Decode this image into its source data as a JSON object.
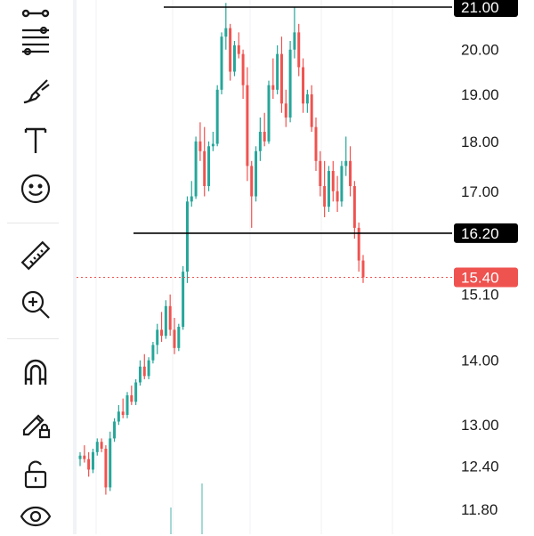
{
  "toolbar": {
    "tools": [
      {
        "name": "line-tool-icon"
      },
      {
        "name": "fib-tool-icon"
      },
      {
        "name": "brush-icon"
      },
      {
        "name": "text-icon"
      },
      {
        "name": "emoji-icon"
      },
      {
        "name": "ruler-icon"
      },
      {
        "name": "zoom-in-icon"
      },
      {
        "name": "magnet-icon"
      },
      {
        "name": "lock-drawing-icon"
      },
      {
        "name": "unlock-icon"
      },
      {
        "name": "eye-icon"
      }
    ]
  },
  "colors": {
    "up": "#26a69a",
    "down": "#ef5350",
    "line": "#000000",
    "price_tag": "#ef5350"
  },
  "chart_data": {
    "type": "candlestick",
    "y_ticks": [
      "21.00",
      "20.00",
      "19.00",
      "18.00",
      "17.00",
      "16.20",
      "15.10",
      "14.00",
      "13.00",
      "12.40",
      "11.80"
    ],
    "y_tick_values": [
      21.0,
      20.0,
      19.0,
      18.0,
      17.0,
      16.2,
      15.1,
      14.0,
      13.0,
      12.4,
      11.8
    ],
    "horizontal_lines": [
      {
        "value": 21.0,
        "label": "21.00"
      },
      {
        "value": 16.2,
        "label": "16.20"
      }
    ],
    "current_price": {
      "value": 15.4,
      "label": "15.40"
    },
    "candles": [
      [
        12.5,
        12.6,
        12.4,
        12.55
      ],
      [
        12.55,
        12.7,
        12.45,
        12.5
      ],
      [
        12.5,
        12.6,
        12.25,
        12.35
      ],
      [
        12.35,
        12.65,
        12.3,
        12.6
      ],
      [
        12.6,
        12.8,
        12.55,
        12.75
      ],
      [
        12.75,
        12.8,
        12.6,
        12.65
      ],
      [
        12.65,
        12.7,
        12.0,
        12.1
      ],
      [
        12.1,
        12.9,
        12.05,
        12.8
      ],
      [
        12.8,
        13.1,
        12.75,
        13.05
      ],
      [
        13.05,
        13.3,
        13.0,
        13.2
      ],
      [
        13.2,
        13.4,
        13.1,
        13.15
      ],
      [
        13.15,
        13.5,
        13.1,
        13.45
      ],
      [
        13.45,
        13.6,
        13.3,
        13.35
      ],
      [
        13.35,
        13.7,
        13.3,
        13.65
      ],
      [
        13.65,
        14.0,
        13.6,
        13.9
      ],
      [
        13.9,
        14.1,
        13.7,
        13.75
      ],
      [
        13.75,
        14.05,
        13.7,
        14.0
      ],
      [
        14.0,
        14.3,
        13.95,
        14.25
      ],
      [
        14.25,
        14.6,
        14.1,
        14.5
      ],
      [
        14.5,
        14.8,
        14.3,
        14.4
      ],
      [
        14.4,
        15.0,
        14.35,
        14.9
      ],
      [
        14.9,
        15.1,
        14.4,
        14.5
      ],
      [
        14.5,
        14.7,
        14.1,
        14.2
      ],
      [
        14.2,
        14.6,
        14.15,
        14.55
      ],
      [
        14.55,
        15.6,
        14.5,
        15.5
      ],
      [
        15.5,
        16.9,
        15.3,
        16.8
      ],
      [
        16.8,
        17.2,
        16.7,
        16.9
      ],
      [
        16.9,
        18.1,
        16.85,
        18.0
      ],
      [
        18.0,
        18.4,
        17.6,
        17.8
      ],
      [
        17.8,
        18.3,
        16.9,
        17.1
      ],
      [
        17.1,
        18.0,
        17.0,
        17.9
      ],
      [
        17.9,
        18.2,
        17.8,
        17.95
      ],
      [
        17.95,
        19.2,
        17.9,
        19.1
      ],
      [
        19.1,
        20.4,
        19.0,
        20.3
      ],
      [
        20.3,
        21.1,
        20.0,
        20.5
      ],
      [
        20.5,
        20.6,
        19.3,
        19.5
      ],
      [
        19.5,
        20.2,
        19.4,
        20.1
      ],
      [
        20.1,
        20.4,
        19.8,
        19.9
      ],
      [
        19.9,
        20.0,
        18.9,
        19.2
      ],
      [
        19.2,
        19.6,
        17.2,
        17.5
      ],
      [
        17.5,
        17.6,
        16.3,
        16.9
      ],
      [
        16.9,
        17.9,
        16.8,
        17.8
      ],
      [
        17.8,
        18.5,
        17.6,
        18.2
      ],
      [
        18.2,
        18.6,
        17.9,
        18.0
      ],
      [
        18.0,
        19.3,
        17.95,
        19.2
      ],
      [
        19.2,
        19.8,
        18.9,
        19.1
      ],
      [
        19.1,
        20.1,
        19.0,
        19.9
      ],
      [
        19.9,
        20.3,
        18.6,
        18.8
      ],
      [
        18.8,
        19.1,
        18.3,
        18.5
      ],
      [
        18.5,
        20.2,
        18.4,
        20.0
      ],
      [
        20.0,
        21.0,
        19.8,
        20.4
      ],
      [
        20.4,
        20.6,
        19.4,
        19.6
      ],
      [
        19.6,
        19.8,
        18.6,
        18.8
      ],
      [
        18.8,
        19.1,
        18.6,
        19.0
      ],
      [
        19.0,
        19.2,
        18.2,
        18.3
      ],
      [
        18.3,
        18.5,
        17.4,
        17.6
      ],
      [
        17.6,
        17.8,
        16.9,
        17.1
      ],
      [
        17.1,
        17.6,
        16.5,
        16.7
      ],
      [
        16.7,
        17.5,
        16.6,
        17.4
      ],
      [
        17.4,
        17.6,
        16.8,
        17.0
      ],
      [
        17.0,
        17.3,
        16.6,
        16.8
      ],
      [
        16.8,
        17.6,
        16.7,
        17.5
      ],
      [
        17.5,
        18.1,
        17.3,
        17.6
      ],
      [
        17.6,
        17.9,
        16.9,
        17.1
      ],
      [
        17.1,
        17.2,
        16.1,
        16.3
      ],
      [
        16.3,
        16.4,
        15.5,
        15.7
      ],
      [
        15.7,
        15.8,
        15.3,
        15.4
      ]
    ]
  }
}
